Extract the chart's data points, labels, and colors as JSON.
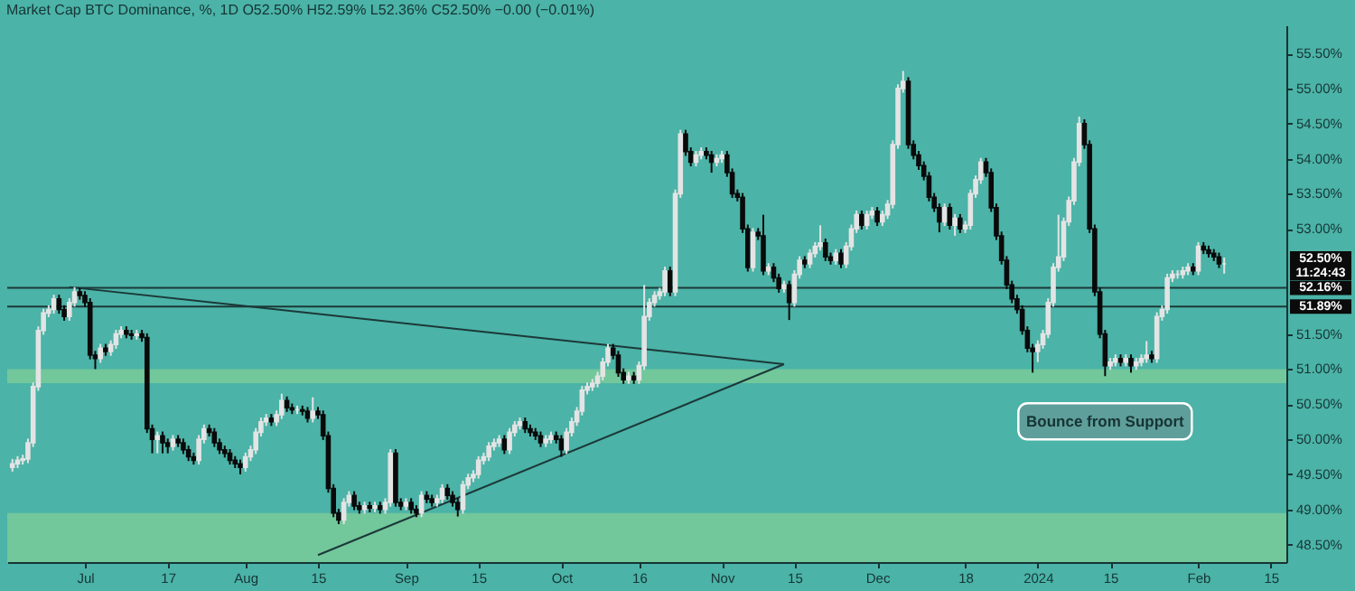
{
  "chart_data": {
    "type": "candlestick",
    "title": "Market Cap BTC Dominance, %, 1D  O52.50%  H52.59%  L52.36%  C52.50%  −0.00 (−0.01%)",
    "x": [
      "2023-06-17",
      "2023-06-18",
      "2023-06-19",
      "2023-06-20",
      "2023-06-21",
      "2023-06-22",
      "2023-06-23",
      "2023-06-24",
      "2023-06-25",
      "2023-06-26",
      "2023-06-27",
      "2023-06-28",
      "2023-06-29",
      "2023-06-30",
      "2023-07-01",
      "2023-07-02",
      "2023-07-03",
      "2023-07-04",
      "2023-07-05",
      "2023-07-06",
      "2023-07-07",
      "2023-07-08",
      "2023-07-09",
      "2023-07-10",
      "2023-07-11",
      "2023-07-12",
      "2023-07-13",
      "2023-07-14",
      "2023-07-15",
      "2023-07-16",
      "2023-07-17",
      "2023-07-18",
      "2023-07-19",
      "2023-07-20",
      "2023-07-21",
      "2023-07-22",
      "2023-07-23",
      "2023-07-24",
      "2023-07-25",
      "2023-07-26",
      "2023-07-27",
      "2023-07-28",
      "2023-07-29",
      "2023-07-30",
      "2023-07-31",
      "2023-08-01",
      "2023-08-02",
      "2023-08-03",
      "2023-08-04",
      "2023-08-05",
      "2023-08-06",
      "2023-08-07",
      "2023-08-08",
      "2023-08-09",
      "2023-08-10",
      "2023-08-11",
      "2023-08-12",
      "2023-08-13",
      "2023-08-14",
      "2023-08-15",
      "2023-08-16",
      "2023-08-17",
      "2023-08-18",
      "2023-08-19",
      "2023-08-20",
      "2023-08-21",
      "2023-08-22",
      "2023-08-23",
      "2023-08-24",
      "2023-08-25",
      "2023-08-26",
      "2023-08-27",
      "2023-08-28",
      "2023-08-29",
      "2023-08-30",
      "2023-08-31",
      "2023-09-01",
      "2023-09-02",
      "2023-09-03",
      "2023-09-04",
      "2023-09-05",
      "2023-09-06",
      "2023-09-07",
      "2023-09-08",
      "2023-09-09",
      "2023-09-10",
      "2023-09-11",
      "2023-09-12",
      "2023-09-13",
      "2023-09-14",
      "2023-09-15",
      "2023-09-16",
      "2023-09-17",
      "2023-09-18",
      "2023-09-19",
      "2023-09-20",
      "2023-09-21",
      "2023-09-22",
      "2023-09-23",
      "2023-09-24",
      "2023-09-25",
      "2023-09-26",
      "2023-09-27",
      "2023-09-28",
      "2023-09-29",
      "2023-09-30",
      "2023-10-01",
      "2023-10-02",
      "2023-10-03",
      "2023-10-04",
      "2023-10-05",
      "2023-10-06",
      "2023-10-07",
      "2023-10-08",
      "2023-10-09",
      "2023-10-10",
      "2023-10-11",
      "2023-10-12",
      "2023-10-13",
      "2023-10-14",
      "2023-10-15",
      "2023-10-16",
      "2023-10-17",
      "2023-10-18",
      "2023-10-19",
      "2023-10-20",
      "2023-10-21",
      "2023-10-22",
      "2023-10-23",
      "2023-10-24",
      "2023-10-25",
      "2023-10-26",
      "2023-10-27",
      "2023-10-28",
      "2023-10-29",
      "2023-10-30",
      "2023-10-31",
      "2023-11-01",
      "2023-11-02",
      "2023-11-03",
      "2023-11-04",
      "2023-11-05",
      "2023-11-06",
      "2023-11-07",
      "2023-11-08",
      "2023-11-09",
      "2023-11-10",
      "2023-11-11",
      "2023-11-12",
      "2023-11-13",
      "2023-11-14",
      "2023-11-15",
      "2023-11-16",
      "2023-11-17",
      "2023-11-18",
      "2023-11-19",
      "2023-11-20",
      "2023-11-21",
      "2023-11-22",
      "2023-11-23",
      "2023-11-24",
      "2023-11-25",
      "2023-11-26",
      "2023-11-27",
      "2023-11-28",
      "2023-11-29",
      "2023-11-30",
      "2023-12-01",
      "2023-12-02",
      "2023-12-03",
      "2023-12-04",
      "2023-12-05",
      "2023-12-06",
      "2023-12-07",
      "2023-12-08",
      "2023-12-09",
      "2023-12-10",
      "2023-12-11",
      "2023-12-12",
      "2023-12-13",
      "2023-12-14",
      "2023-12-15",
      "2023-12-16",
      "2023-12-17",
      "2023-12-18",
      "2023-12-19",
      "2023-12-20",
      "2023-12-21",
      "2023-12-22",
      "2023-12-23",
      "2023-12-24",
      "2023-12-25",
      "2023-12-26",
      "2023-12-27",
      "2023-12-28",
      "2023-12-29",
      "2023-12-30",
      "2023-12-31",
      "2024-01-01",
      "2024-01-02",
      "2024-01-03",
      "2024-01-04",
      "2024-01-05",
      "2024-01-06",
      "2024-01-07",
      "2024-01-08",
      "2024-01-09",
      "2024-01-10",
      "2024-01-11",
      "2024-01-12",
      "2024-01-13",
      "2024-01-14",
      "2024-01-15",
      "2024-01-16",
      "2024-01-17",
      "2024-01-18",
      "2024-01-19",
      "2024-01-20",
      "2024-01-21",
      "2024-01-22",
      "2024-01-23",
      "2024-01-24",
      "2024-01-25",
      "2024-01-26",
      "2024-01-27",
      "2024-01-28",
      "2024-01-29",
      "2024-01-30",
      "2024-01-31",
      "2024-02-01",
      "2024-02-02",
      "2024-02-03",
      "2024-02-04",
      "2024-02-05",
      "2024-02-06"
    ],
    "ohlc": [
      [
        49.6,
        49.72,
        49.54,
        49.65
      ],
      [
        49.65,
        49.76,
        49.59,
        49.7
      ],
      [
        49.7,
        49.78,
        49.64,
        49.72
      ],
      [
        49.72,
        50.01,
        49.66,
        49.95
      ],
      [
        49.95,
        50.81,
        49.89,
        50.75
      ],
      [
        50.75,
        51.61,
        50.69,
        51.55
      ],
      [
        51.55,
        51.86,
        51.49,
        51.8
      ],
      [
        51.8,
        51.91,
        51.74,
        51.85
      ],
      [
        51.85,
        52.06,
        51.79,
        52.0
      ],
      [
        52.0,
        52.06,
        51.79,
        51.85
      ],
      [
        51.85,
        51.91,
        51.69,
        51.75
      ],
      [
        51.75,
        52.01,
        51.69,
        51.95
      ],
      [
        51.95,
        52.17,
        51.89,
        52.1
      ],
      [
        52.1,
        52.16,
        51.99,
        52.05
      ],
      [
        52.05,
        52.11,
        51.89,
        51.95
      ],
      [
        51.95,
        52.01,
        51.14,
        51.2
      ],
      [
        51.2,
        51.26,
        51.0,
        51.15
      ],
      [
        51.15,
        51.36,
        51.09,
        51.3
      ],
      [
        51.3,
        51.36,
        51.19,
        51.25
      ],
      [
        51.25,
        51.41,
        51.19,
        51.35
      ],
      [
        51.35,
        51.56,
        51.29,
        51.5
      ],
      [
        51.5,
        51.61,
        51.44,
        51.55
      ],
      [
        51.55,
        51.61,
        51.44,
        51.5
      ],
      [
        51.5,
        51.56,
        51.42,
        51.48
      ],
      [
        51.48,
        51.56,
        51.42,
        51.5
      ],
      [
        51.5,
        51.56,
        51.39,
        51.45
      ],
      [
        51.45,
        51.51,
        50.09,
        50.15
      ],
      [
        50.15,
        50.21,
        49.8,
        50.0
      ],
      [
        50.0,
        50.11,
        49.8,
        50.05
      ],
      [
        50.05,
        50.11,
        49.8,
        49.95
      ],
      [
        49.95,
        50.01,
        49.8,
        49.9
      ],
      [
        49.9,
        50.06,
        49.84,
        50.0
      ],
      [
        50.0,
        50.06,
        49.89,
        49.95
      ],
      [
        49.95,
        50.01,
        49.79,
        49.85
      ],
      [
        49.85,
        49.91,
        49.69,
        49.75
      ],
      [
        49.75,
        49.81,
        49.64,
        49.7
      ],
      [
        49.7,
        50.06,
        49.64,
        50.0
      ],
      [
        50.0,
        50.21,
        49.94,
        50.15
      ],
      [
        50.15,
        50.21,
        50.04,
        50.1
      ],
      [
        50.1,
        50.16,
        49.89,
        49.95
      ],
      [
        49.95,
        50.01,
        49.79,
        49.85
      ],
      [
        49.85,
        49.91,
        49.74,
        49.8
      ],
      [
        49.8,
        49.86,
        49.64,
        49.7
      ],
      [
        49.7,
        49.76,
        49.59,
        49.65
      ],
      [
        49.65,
        49.71,
        49.5,
        49.6
      ],
      [
        49.6,
        49.81,
        49.54,
        49.75
      ],
      [
        49.75,
        49.91,
        49.69,
        49.85
      ],
      [
        49.85,
        50.16,
        49.79,
        50.1
      ],
      [
        50.1,
        50.31,
        50.04,
        50.25
      ],
      [
        50.25,
        50.36,
        50.19,
        50.3
      ],
      [
        50.3,
        50.36,
        50.19,
        50.25
      ],
      [
        50.25,
        50.41,
        50.19,
        50.35
      ],
      [
        50.35,
        50.65,
        50.29,
        50.55
      ],
      [
        50.55,
        50.61,
        50.39,
        50.45
      ],
      [
        50.45,
        50.51,
        50.36,
        50.42
      ],
      [
        50.42,
        50.48,
        50.36,
        50.42
      ],
      [
        50.42,
        50.48,
        50.34,
        50.4
      ],
      [
        50.4,
        50.46,
        50.24,
        50.3
      ],
      [
        50.3,
        50.6,
        50.24,
        50.4
      ],
      [
        50.4,
        50.46,
        50.29,
        50.35
      ],
      [
        50.35,
        50.41,
        49.99,
        50.05
      ],
      [
        50.05,
        50.11,
        49.24,
        49.3
      ],
      [
        49.3,
        49.36,
        48.89,
        48.95
      ],
      [
        48.95,
        49.01,
        48.79,
        48.85
      ],
      [
        48.85,
        49.16,
        48.79,
        49.1
      ],
      [
        49.1,
        49.26,
        49.04,
        49.2
      ],
      [
        49.2,
        49.26,
        48.99,
        49.05
      ],
      [
        49.05,
        49.11,
        48.94,
        49.0
      ],
      [
        49.0,
        49.11,
        48.94,
        49.05
      ],
      [
        49.05,
        49.11,
        48.96,
        49.02
      ],
      [
        49.02,
        49.11,
        48.96,
        49.05
      ],
      [
        49.05,
        49.11,
        48.94,
        49.0
      ],
      [
        49.0,
        49.16,
        48.94,
        49.1
      ],
      [
        49.1,
        49.86,
        49.04,
        49.8
      ],
      [
        49.8,
        49.86,
        49.04,
        49.1
      ],
      [
        49.1,
        49.16,
        48.99,
        49.05
      ],
      [
        49.05,
        49.16,
        48.99,
        49.1
      ],
      [
        49.1,
        49.16,
        48.94,
        49.0
      ],
      [
        49.0,
        49.06,
        48.89,
        48.95
      ],
      [
        48.95,
        49.26,
        48.89,
        49.2
      ],
      [
        49.2,
        49.26,
        49.09,
        49.15
      ],
      [
        49.15,
        49.21,
        49.04,
        49.1
      ],
      [
        49.1,
        49.21,
        49.04,
        49.15
      ],
      [
        49.15,
        49.36,
        49.09,
        49.3
      ],
      [
        49.3,
        49.36,
        49.14,
        49.2
      ],
      [
        49.2,
        49.26,
        49.04,
        49.1
      ],
      [
        49.1,
        49.16,
        48.9,
        49.0
      ],
      [
        49.0,
        49.41,
        48.94,
        49.35
      ],
      [
        49.35,
        49.51,
        49.29,
        49.45
      ],
      [
        49.45,
        49.56,
        49.39,
        49.5
      ],
      [
        49.5,
        49.76,
        49.44,
        49.7
      ],
      [
        49.7,
        49.81,
        49.64,
        49.75
      ],
      [
        49.75,
        49.96,
        49.69,
        49.9
      ],
      [
        49.9,
        50.01,
        49.84,
        49.95
      ],
      [
        49.95,
        50.06,
        49.89,
        50.0
      ],
      [
        50.0,
        50.06,
        49.79,
        49.85
      ],
      [
        49.85,
        50.16,
        49.79,
        50.1
      ],
      [
        50.1,
        50.26,
        50.04,
        50.2
      ],
      [
        50.2,
        50.31,
        50.14,
        50.25
      ],
      [
        50.25,
        50.31,
        50.09,
        50.15
      ],
      [
        50.15,
        50.21,
        50.04,
        50.1
      ],
      [
        50.1,
        50.16,
        49.99,
        50.05
      ],
      [
        50.05,
        50.11,
        49.89,
        49.95
      ],
      [
        49.95,
        50.06,
        49.89,
        50.0
      ],
      [
        50.0,
        50.11,
        49.94,
        50.05
      ],
      [
        50.05,
        50.11,
        49.94,
        50.0
      ],
      [
        50.0,
        50.06,
        49.75,
        49.85
      ],
      [
        49.85,
        50.16,
        49.79,
        50.1
      ],
      [
        50.1,
        50.31,
        50.04,
        50.25
      ],
      [
        50.25,
        50.46,
        50.19,
        50.4
      ],
      [
        50.4,
        50.76,
        50.34,
        50.7
      ],
      [
        50.7,
        50.81,
        50.64,
        50.75
      ],
      [
        50.75,
        50.86,
        50.69,
        50.8
      ],
      [
        50.8,
        50.96,
        50.74,
        50.9
      ],
      [
        50.9,
        51.16,
        50.84,
        51.1
      ],
      [
        51.1,
        51.36,
        51.04,
        51.3
      ],
      [
        51.3,
        51.36,
        51.14,
        51.2
      ],
      [
        51.2,
        51.26,
        50.89,
        50.95
      ],
      [
        50.95,
        51.01,
        50.79,
        50.85
      ],
      [
        50.85,
        50.96,
        50.79,
        50.9
      ],
      [
        50.9,
        50.96,
        50.79,
        50.85
      ],
      [
        50.85,
        51.11,
        50.79,
        51.05
      ],
      [
        51.05,
        52.2,
        50.99,
        51.75
      ],
      [
        51.75,
        52.01,
        51.69,
        51.95
      ],
      [
        51.95,
        52.11,
        51.89,
        52.05
      ],
      [
        52.05,
        52.16,
        51.99,
        52.1
      ],
      [
        52.1,
        52.46,
        52.04,
        52.4
      ],
      [
        52.4,
        52.46,
        52.04,
        52.1
      ],
      [
        52.1,
        53.56,
        52.04,
        53.5
      ],
      [
        53.5,
        54.41,
        53.44,
        54.35
      ],
      [
        54.35,
        54.41,
        54.04,
        54.1
      ],
      [
        54.1,
        54.16,
        53.89,
        53.95
      ],
      [
        53.95,
        54.11,
        53.89,
        54.05
      ],
      [
        54.05,
        54.16,
        53.99,
        54.1
      ],
      [
        54.1,
        54.16,
        53.99,
        54.05
      ],
      [
        54.05,
        54.11,
        53.8,
        53.95
      ],
      [
        53.95,
        54.06,
        53.89,
        54.0
      ],
      [
        54.0,
        54.11,
        53.94,
        54.05
      ],
      [
        54.05,
        54.11,
        53.74,
        53.8
      ],
      [
        53.8,
        53.86,
        53.44,
        53.5
      ],
      [
        53.5,
        53.56,
        53.39,
        53.45
      ],
      [
        53.45,
        53.51,
        52.94,
        53.0
      ],
      [
        53.0,
        53.06,
        52.39,
        52.45
      ],
      [
        52.45,
        53.01,
        52.39,
        52.95
      ],
      [
        52.95,
        53.01,
        52.84,
        52.9
      ],
      [
        52.9,
        53.2,
        52.34,
        52.4
      ],
      [
        52.4,
        52.51,
        52.34,
        52.45
      ],
      [
        52.45,
        52.51,
        52.24,
        52.3
      ],
      [
        52.3,
        52.36,
        52.09,
        52.15
      ],
      [
        52.15,
        52.26,
        52.09,
        52.2
      ],
      [
        52.2,
        52.26,
        51.7,
        51.95
      ],
      [
        51.95,
        52.41,
        51.89,
        52.35
      ],
      [
        52.35,
        52.61,
        52.29,
        52.55
      ],
      [
        52.55,
        52.61,
        52.44,
        52.5
      ],
      [
        52.5,
        52.71,
        52.44,
        52.65
      ],
      [
        52.65,
        52.81,
        52.59,
        52.75
      ],
      [
        52.75,
        53.05,
        52.69,
        52.8
      ],
      [
        52.8,
        52.86,
        52.54,
        52.6
      ],
      [
        52.6,
        52.66,
        52.49,
        52.55
      ],
      [
        52.55,
        52.71,
        52.49,
        52.65
      ],
      [
        52.65,
        52.71,
        52.44,
        52.5
      ],
      [
        52.5,
        52.81,
        52.44,
        52.75
      ],
      [
        52.75,
        53.06,
        52.69,
        53.0
      ],
      [
        53.0,
        53.26,
        52.94,
        53.2
      ],
      [
        53.2,
        53.26,
        52.99,
        53.05
      ],
      [
        53.05,
        53.26,
        52.99,
        53.2
      ],
      [
        53.2,
        53.31,
        53.14,
        53.25
      ],
      [
        53.25,
        53.31,
        53.04,
        53.1
      ],
      [
        53.1,
        53.26,
        53.04,
        53.2
      ],
      [
        53.2,
        53.41,
        53.14,
        53.35
      ],
      [
        53.35,
        54.26,
        53.29,
        54.2
      ],
      [
        54.2,
        55.06,
        54.14,
        55.0
      ],
      [
        55.0,
        55.25,
        54.94,
        55.1
      ],
      [
        55.1,
        55.16,
        54.14,
        54.2
      ],
      [
        54.2,
        54.26,
        53.99,
        54.05
      ],
      [
        54.05,
        54.11,
        53.84,
        53.9
      ],
      [
        53.9,
        53.96,
        53.69,
        53.75
      ],
      [
        53.75,
        53.81,
        53.39,
        53.45
      ],
      [
        53.45,
        53.51,
        53.24,
        53.3
      ],
      [
        53.3,
        53.36,
        52.95,
        53.1
      ],
      [
        53.1,
        53.36,
        53.04,
        53.3
      ],
      [
        53.3,
        53.36,
        52.99,
        53.05
      ],
      [
        53.05,
        53.21,
        52.9,
        53.15
      ],
      [
        53.15,
        53.21,
        52.94,
        53.0
      ],
      [
        53.0,
        53.11,
        52.94,
        53.05
      ],
      [
        53.05,
        53.56,
        52.99,
        53.5
      ],
      [
        53.5,
        53.76,
        53.44,
        53.7
      ],
      [
        53.7,
        54.01,
        53.64,
        53.95
      ],
      [
        53.95,
        54.01,
        53.74,
        53.8
      ],
      [
        53.8,
        53.86,
        53.24,
        53.3
      ],
      [
        53.3,
        53.36,
        52.84,
        52.9
      ],
      [
        52.9,
        52.96,
        52.49,
        52.55
      ],
      [
        52.55,
        52.61,
        52.14,
        52.2
      ],
      [
        52.2,
        52.26,
        51.94,
        52.0
      ],
      [
        52.0,
        52.06,
        51.79,
        51.85
      ],
      [
        51.85,
        51.91,
        51.49,
        51.55
      ],
      [
        51.55,
        51.61,
        51.24,
        51.3
      ],
      [
        51.3,
        51.36,
        50.95,
        51.25
      ],
      [
        51.25,
        51.41,
        51.1,
        51.35
      ],
      [
        51.35,
        51.56,
        51.29,
        51.5
      ],
      [
        51.5,
        52.01,
        51.44,
        51.95
      ],
      [
        51.95,
        52.51,
        51.89,
        52.45
      ],
      [
        52.45,
        53.2,
        52.39,
        52.6
      ],
      [
        52.6,
        53.16,
        52.54,
        53.1
      ],
      [
        53.1,
        53.46,
        53.04,
        53.4
      ],
      [
        53.4,
        54.01,
        53.34,
        53.95
      ],
      [
        53.95,
        54.6,
        53.89,
        54.5
      ],
      [
        54.5,
        54.56,
        54.14,
        54.2
      ],
      [
        54.2,
        54.26,
        52.94,
        53.0
      ],
      [
        53.0,
        53.06,
        52.04,
        52.1
      ],
      [
        52.1,
        52.16,
        51.44,
        51.5
      ],
      [
        51.5,
        51.56,
        50.9,
        51.05
      ],
      [
        51.05,
        51.16,
        50.99,
        51.1
      ],
      [
        51.1,
        51.21,
        51.04,
        51.15
      ],
      [
        51.15,
        51.21,
        51.04,
        51.1
      ],
      [
        51.1,
        51.21,
        51.04,
        51.15
      ],
      [
        51.15,
        51.21,
        50.95,
        51.05
      ],
      [
        51.05,
        51.16,
        50.99,
        51.1
      ],
      [
        51.1,
        51.21,
        51.04,
        51.15
      ],
      [
        51.15,
        51.4,
        51.09,
        51.2
      ],
      [
        51.2,
        51.26,
        51.09,
        51.15
      ],
      [
        51.15,
        51.81,
        51.09,
        51.75
      ],
      [
        51.75,
        51.91,
        51.69,
        51.85
      ],
      [
        51.85,
        52.36,
        51.79,
        52.3
      ],
      [
        52.3,
        52.41,
        52.24,
        52.35
      ],
      [
        52.35,
        52.41,
        52.29,
        52.35
      ],
      [
        52.35,
        52.46,
        52.29,
        52.4
      ],
      [
        52.4,
        52.51,
        52.34,
        52.45
      ],
      [
        52.45,
        52.51,
        52.34,
        52.4
      ],
      [
        52.4,
        52.81,
        52.34,
        52.75
      ],
      [
        52.75,
        52.81,
        52.64,
        52.7
      ],
      [
        52.7,
        52.76,
        52.59,
        52.65
      ],
      [
        52.65,
        52.71,
        52.54,
        52.6
      ],
      [
        52.6,
        52.66,
        52.44,
        52.5
      ],
      [
        52.5,
        52.59,
        52.36,
        52.5
      ]
    ],
    "colors": [
      "#e4e4e4",
      "#e4e4e4",
      "#e4e4e4",
      "#e4e4e4",
      "#e4e4e4",
      "#e4e4e4",
      "#e4e4e4",
      "#e4e4e4",
      "#e4e4e4",
      "#0a0a0a",
      "#0a0a0a",
      "#e4e4e4",
      "#e4e4e4",
      "#0a0a0a",
      "#0a0a0a",
      "#0a0a0a",
      "#0a0a0a",
      "#e4e4e4",
      "#0a0a0a",
      "#e4e4e4",
      "#e4e4e4",
      "#e4e4e4",
      "#0a0a0a",
      "#0a0a0a",
      "#e4e4e4",
      "#0a0a0a",
      "#0a0a0a",
      "#0a0a0a",
      "#e4e4e4",
      "#0a0a0a",
      "#0a0a0a",
      "#e4e4e4",
      "#0a0a0a",
      "#0a0a0a",
      "#0a0a0a",
      "#0a0a0a",
      "#e4e4e4",
      "#e4e4e4",
      "#0a0a0a",
      "#0a0a0a",
      "#0a0a0a",
      "#0a0a0a",
      "#0a0a0a",
      "#0a0a0a",
      "#0a0a0a",
      "#e4e4e4",
      "#e4e4e4",
      "#e4e4e4",
      "#e4e4e4",
      "#e4e4e4",
      "#0a0a0a",
      "#e4e4e4",
      "#e4e4e4",
      "#0a0a0a",
      "#0a0a0a",
      "#e4e4e4",
      "#0a0a0a",
      "#0a0a0a",
      "#e4e4e4",
      "#0a0a0a",
      "#0a0a0a",
      "#0a0a0a",
      "#0a0a0a",
      "#0a0a0a",
      "#e4e4e4",
      "#e4e4e4",
      "#0a0a0a",
      "#0a0a0a",
      "#e4e4e4",
      "#0a0a0a",
      "#e4e4e4",
      "#0a0a0a",
      "#e4e4e4",
      "#e4e4e4",
      "#0a0a0a",
      "#0a0a0a",
      "#e4e4e4",
      "#0a0a0a",
      "#0a0a0a",
      "#e4e4e4",
      "#0a0a0a",
      "#0a0a0a",
      "#e4e4e4",
      "#e4e4e4",
      "#0a0a0a",
      "#0a0a0a",
      "#0a0a0a",
      "#e4e4e4",
      "#e4e4e4",
      "#e4e4e4",
      "#e4e4e4",
      "#e4e4e4",
      "#e4e4e4",
      "#e4e4e4",
      "#e4e4e4",
      "#0a0a0a",
      "#e4e4e4",
      "#e4e4e4",
      "#e4e4e4",
      "#0a0a0a",
      "#0a0a0a",
      "#0a0a0a",
      "#0a0a0a",
      "#e4e4e4",
      "#e4e4e4",
      "#0a0a0a",
      "#0a0a0a",
      "#e4e4e4",
      "#e4e4e4",
      "#e4e4e4",
      "#e4e4e4",
      "#e4e4e4",
      "#e4e4e4",
      "#e4e4e4",
      "#e4e4e4",
      "#e4e4e4",
      "#0a0a0a",
      "#0a0a0a",
      "#0a0a0a",
      "#e4e4e4",
      "#0a0a0a",
      "#e4e4e4",
      "#e4e4e4",
      "#e4e4e4",
      "#e4e4e4",
      "#e4e4e4",
      "#e4e4e4",
      "#0a0a0a",
      "#e4e4e4",
      "#e4e4e4",
      "#0a0a0a",
      "#0a0a0a",
      "#e4e4e4",
      "#e4e4e4",
      "#0a0a0a",
      "#0a0a0a",
      "#e4e4e4",
      "#e4e4e4",
      "#0a0a0a",
      "#0a0a0a",
      "#0a0a0a",
      "#0a0a0a",
      "#0a0a0a",
      "#e4e4e4",
      "#0a0a0a",
      "#0a0a0a",
      "#e4e4e4",
      "#0a0a0a",
      "#0a0a0a",
      "#e4e4e4",
      "#0a0a0a",
      "#e4e4e4",
      "#e4e4e4",
      "#0a0a0a",
      "#e4e4e4",
      "#e4e4e4",
      "#e4e4e4",
      "#0a0a0a",
      "#0a0a0a",
      "#e4e4e4",
      "#0a0a0a",
      "#e4e4e4",
      "#e4e4e4",
      "#e4e4e4",
      "#0a0a0a",
      "#e4e4e4",
      "#e4e4e4",
      "#0a0a0a",
      "#e4e4e4",
      "#e4e4e4",
      "#e4e4e4",
      "#e4e4e4",
      "#e4e4e4",
      "#0a0a0a",
      "#0a0a0a",
      "#0a0a0a",
      "#0a0a0a",
      "#0a0a0a",
      "#0a0a0a",
      "#0a0a0a",
      "#e4e4e4",
      "#0a0a0a",
      "#e4e4e4",
      "#0a0a0a",
      "#e4e4e4",
      "#e4e4e4",
      "#e4e4e4",
      "#e4e4e4",
      "#0a0a0a",
      "#0a0a0a",
      "#0a0a0a",
      "#0a0a0a",
      "#0a0a0a",
      "#0a0a0a",
      "#0a0a0a",
      "#0a0a0a",
      "#0a0a0a",
      "#0a0a0a",
      "#e4e4e4",
      "#e4e4e4",
      "#e4e4e4",
      "#e4e4e4",
      "#e4e4e4",
      "#e4e4e4",
      "#e4e4e4",
      "#e4e4e4",
      "#e4e4e4",
      "#0a0a0a",
      "#0a0a0a",
      "#0a0a0a",
      "#0a0a0a",
      "#0a0a0a",
      "#e4e4e4",
      "#e4e4e4",
      "#0a0a0a",
      "#e4e4e4",
      "#0a0a0a",
      "#e4e4e4",
      "#e4e4e4",
      "#e4e4e4",
      "#0a0a0a",
      "#e4e4e4",
      "#e4e4e4",
      "#e4e4e4",
      "#e4e4e4",
      "#e4e4e4",
      "#e4e4e4",
      "#e4e4e4",
      "#0a0a0a",
      "#e4e4e4",
      "#0a0a0a",
      "#0a0a0a",
      "#0a0a0a",
      "#0a0a0a",
      "#e4e4e4"
    ],
    "series": [
      {
        "type": "line",
        "color": "#1c3838",
        "x": [
          "2023-06-28",
          "2023-11-13"
        ],
        "values": [
          52.17,
          51.07
        ]
      },
      {
        "type": "line",
        "color": "#1c3838",
        "x": [
          "2023-08-15",
          "2023-11-13"
        ],
        "values": [
          48.35,
          51.07
        ]
      }
    ],
    "xlim": [
      "2023-06-16",
      "2024-02-18"
    ],
    "xticks": [
      {
        "value": "2023-07-01",
        "label": "Jul"
      },
      {
        "value": "2023-07-17",
        "label": "17"
      },
      {
        "value": "2023-08-01",
        "label": "Aug"
      },
      {
        "value": "2023-08-15",
        "label": "15"
      },
      {
        "value": "2023-09-01",
        "label": "Sep"
      },
      {
        "value": "2023-09-15",
        "label": "15"
      },
      {
        "value": "2023-10-01",
        "label": "Oct"
      },
      {
        "value": "2023-10-16",
        "label": "16"
      },
      {
        "value": "2023-11-01",
        "label": "Nov"
      },
      {
        "value": "2023-11-15",
        "label": "15"
      },
      {
        "value": "2023-12-01",
        "label": "Dec"
      },
      {
        "value": "2023-12-18",
        "label": "18"
      },
      {
        "value": "2024-01-01",
        "label": "2024"
      },
      {
        "value": "2024-01-15",
        "label": "15"
      },
      {
        "value": "2024-02-01",
        "label": "Feb"
      },
      {
        "value": "2024-02-15",
        "label": "15"
      }
    ],
    "ylim": [
      48.25,
      55.9
    ],
    "yticks": [
      {
        "value": 48.5,
        "label": "48.50%"
      },
      {
        "value": 49,
        "label": "49.00%"
      },
      {
        "value": 49.5,
        "label": "49.50%"
      },
      {
        "value": 50,
        "label": "50.00%"
      },
      {
        "value": 50.5,
        "label": "50.50%"
      },
      {
        "value": 51,
        "label": "51.00%"
      },
      {
        "value": 51.5,
        "label": "51.50%"
      },
      {
        "value": 53,
        "label": "53.00%"
      },
      {
        "value": 53.5,
        "label": "53.50%"
      },
      {
        "value": 54,
        "label": "54.00%"
      },
      {
        "value": 54.5,
        "label": "54.50%"
      },
      {
        "value": 55,
        "label": "55.00%"
      },
      {
        "value": 55.5,
        "label": "55.50%"
      }
    ],
    "ref_lines": [
      {
        "axis": "y",
        "value": 52.16,
        "label": "52.16%",
        "color": "#1c3838"
      },
      {
        "axis": "y",
        "value": 51.89,
        "label": "51.89%",
        "color": "#1c3838"
      }
    ],
    "bands": [
      {
        "axis": "y",
        "from": 50.8,
        "to": 51.0,
        "color": "#72c79b"
      },
      {
        "axis": "y",
        "from": 48.25,
        "to": 48.95,
        "color": "#72c79b"
      }
    ],
    "annotations": [
      "52.50%",
      "11:24:43",
      {
        "text": "Bounce from Support",
        "x": "2024-01-14",
        "y": 50.9
      }
    ]
  }
}
